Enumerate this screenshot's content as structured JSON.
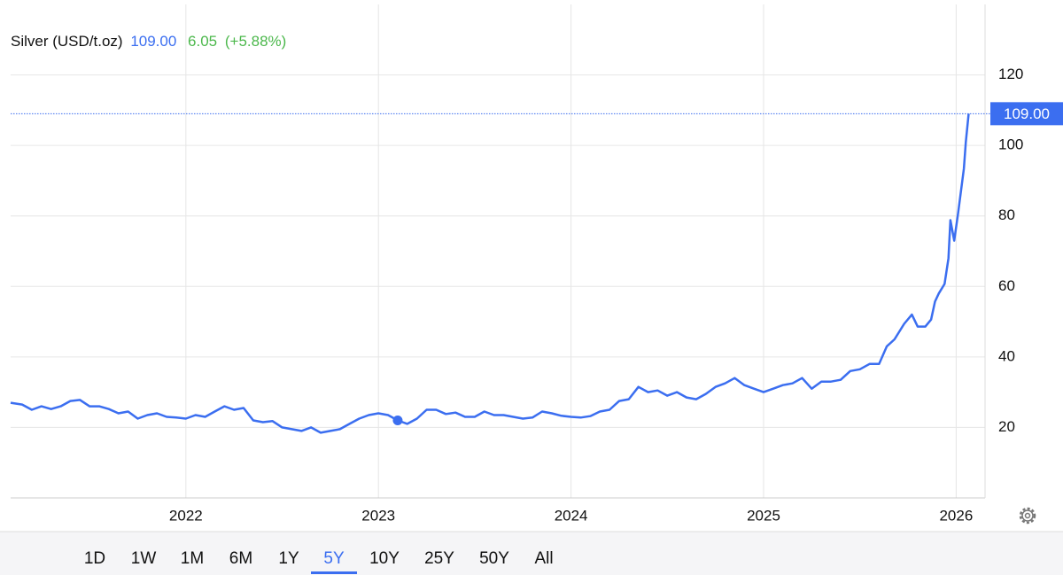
{
  "chart_data": {
    "type": "line",
    "header": {
      "change": "6.05",
      "change_pct": "(+5.88%)"
    },
    "last_price": {
      "value": 109,
      "label": "109.00"
    },
    "x": [
      2021.09,
      2021.15,
      2021.2,
      2021.25,
      2021.3,
      2021.35,
      2021.4,
      2021.45,
      2021.5,
      2021.55,
      2021.6,
      2021.65,
      2021.7,
      2021.75,
      2021.8,
      2021.85,
      2021.9,
      2021.95,
      2022.0,
      2022.05,
      2022.1,
      2022.15,
      2022.2,
      2022.25,
      2022.3,
      2022.35,
      2022.4,
      2022.45,
      2022.5,
      2022.55,
      2022.6,
      2022.65,
      2022.7,
      2022.75,
      2022.8,
      2022.85,
      2022.9,
      2022.95,
      2023.0,
      2023.05,
      2023.1,
      2023.15,
      2023.2,
      2023.25,
      2023.3,
      2023.35,
      2023.4,
      2023.45,
      2023.5,
      2023.55,
      2023.6,
      2023.65,
      2023.7,
      2023.75,
      2023.8,
      2023.85,
      2023.9,
      2023.95,
      2024.0,
      2024.05,
      2024.1,
      2024.15,
      2024.2,
      2024.25,
      2024.3,
      2024.35,
      2024.4,
      2024.45,
      2024.5,
      2024.55,
      2024.6,
      2024.65,
      2024.7,
      2024.75,
      2024.8,
      2024.85,
      2024.9,
      2024.95,
      2025.0,
      2025.05,
      2025.1,
      2025.15,
      2025.2,
      2025.25,
      2025.3,
      2025.35,
      2025.4,
      2025.45,
      2025.5,
      2025.55,
      2025.6,
      2025.64,
      2025.68,
      2025.73,
      2025.77,
      2025.8,
      2025.84,
      2025.87,
      2025.89,
      2025.91,
      2025.94,
      2025.96,
      2025.97,
      2025.99,
      2026.01,
      2026.04,
      2026.05,
      2026.065
    ],
    "series": [
      {
        "name": "Silver (USD/t.oz)",
        "color": "#3b6ef0",
        "values": [
          27,
          26.5,
          25,
          26,
          25.2,
          26,
          27.5,
          27.8,
          26,
          26,
          25.2,
          24,
          24.5,
          22.5,
          23.5,
          24,
          23,
          22.8,
          22.5,
          23.5,
          23,
          24.5,
          26,
          25,
          25.5,
          22,
          21.5,
          21.8,
          20,
          19.5,
          19,
          20,
          18.5,
          19,
          19.5,
          21,
          22.5,
          23.5,
          24,
          23.5,
          22,
          21,
          22.5,
          25,
          25,
          23.8,
          24.2,
          23,
          23,
          24.5,
          23.5,
          23.5,
          23,
          22.5,
          22.8,
          24.5,
          24,
          23.3,
          23,
          22.8,
          23.2,
          24.5,
          25,
          27.5,
          28,
          31.5,
          30,
          30.5,
          29,
          30,
          28.5,
          28,
          29.5,
          31.5,
          32.5,
          34,
          32,
          31,
          30,
          31,
          32,
          32.5,
          34,
          31,
          33,
          33,
          33.5,
          36,
          36.5,
          38,
          38,
          43,
          45,
          49.4,
          52,
          48.6,
          48.6,
          50.6,
          55.7,
          58,
          60.7,
          68,
          78.8,
          73,
          80.8,
          93.4,
          101,
          109
        ]
      }
    ],
    "marker": {
      "x": 2023.1,
      "y": 22
    },
    "xlim": [
      2021.09,
      2026.15
    ],
    "xticks": [
      2022,
      2023,
      2024,
      2025,
      2026
    ],
    "ylim": [
      0,
      140
    ],
    "yticks": [
      20,
      40,
      60,
      80,
      100,
      120
    ],
    "grid": true,
    "ranges": [
      "1D",
      "1W",
      "1M",
      "6M",
      "1Y",
      "5Y",
      "10Y",
      "25Y",
      "50Y",
      "All"
    ],
    "selected_range": "5Y"
  }
}
